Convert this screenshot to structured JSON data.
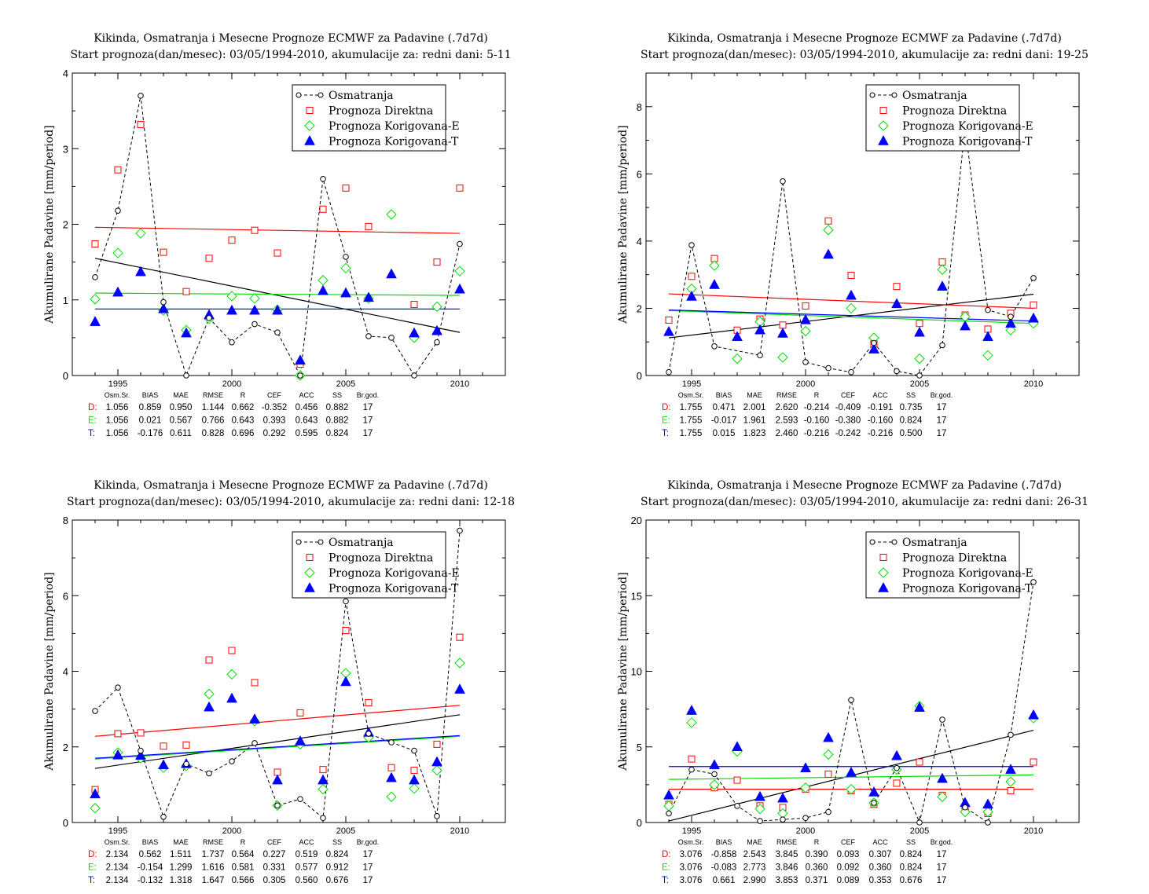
{
  "years": [
    1994,
    1995,
    1996,
    1997,
    1998,
    1999,
    2000,
    2001,
    2002,
    2003,
    2004,
    2005,
    2006,
    2007,
    2008,
    2009,
    2010
  ],
  "stat_header": [
    "Osm.Sr.",
    "BIAS",
    "MAE",
    "RMSE",
    "R",
    "CEF",
    "ACC",
    "SS",
    "Br.god."
  ],
  "legend_labels": [
    "Osmatranja",
    "Prognoza Direktna",
    "Prognoza Korigovana-E",
    "Prognoza Korigovana-T"
  ],
  "colors": {
    "obs": "#000000",
    "direct": "#ff0000",
    "corr_e": "#00dd00",
    "corr_t": "#0000ff"
  },
  "chart_data": [
    {
      "type": "scatter",
      "title": "Kikinda, Osmatranja i Mesecne Prognoze ECMWF za Padavine (.7d7d)",
      "subtitle": "Start prognoza(dan/mesec): 03/05/1994-2010, akumulacije za: redni dani: 5-11",
      "ylabel": "Akumulirane Padavine [mm/period]",
      "xlim": [
        1993,
        2012
      ],
      "ylim": [
        0,
        4
      ],
      "xticks": [
        1995,
        2000,
        2005,
        2010
      ],
      "yticks": [
        0,
        1,
        2,
        3,
        4
      ],
      "series": [
        {
          "name": "Osmatranja",
          "values": [
            1.3,
            2.18,
            3.7,
            0.97,
            0.0,
            0.76,
            0.44,
            0.68,
            0.57,
            0.0,
            2.6,
            1.57,
            0.52,
            0.5,
            0.0,
            0.44,
            1.74
          ]
        },
        {
          "name": "Prognoza Direktna",
          "values": [
            1.74,
            2.72,
            3.32,
            1.63,
            1.11,
            1.55,
            1.79,
            1.92,
            1.62,
            0.15,
            2.2,
            2.48,
            1.97,
            null,
            0.94,
            1.5,
            2.48
          ]
        },
        {
          "name": "Prognoza Korigovana-E",
          "values": [
            1.01,
            1.62,
            1.88,
            0.86,
            0.6,
            0.75,
            1.05,
            1.02,
            0.87,
            0.0,
            1.26,
            1.42,
            1.02,
            2.13,
            0.5,
            0.91,
            1.38
          ]
        },
        {
          "name": "Prognoza Korigovana-T",
          "values": [
            0.71,
            1.1,
            1.37,
            0.88,
            0.56,
            0.8,
            0.86,
            0.86,
            0.86,
            0.2,
            1.12,
            1.09,
            1.03,
            1.34,
            0.56,
            0.59,
            1.14
          ]
        }
      ],
      "trends": {
        "obs": [
          1.55,
          0.57
        ],
        "direct": [
          1.96,
          1.88
        ],
        "corr_e": [
          1.09,
          1.06
        ],
        "corr_t": [
          0.88,
          0.88
        ]
      },
      "stats": [
        {
          "label": "D:",
          "values": [
            "1.056",
            "0.859",
            "0.950",
            "1.144",
            "0.662",
            "-0.352",
            "0.456",
            "0.882",
            "17"
          ]
        },
        {
          "label": "E:",
          "values": [
            "1.056",
            "0.021",
            "0.567",
            "0.766",
            "0.643",
            "0.393",
            "0.643",
            "0.882",
            "17"
          ]
        },
        {
          "label": "T:",
          "values": [
            "1.056",
            "-0.176",
            "0.611",
            "0.828",
            "0.696",
            "0.292",
            "0.595",
            "0.824",
            "17"
          ]
        }
      ]
    },
    {
      "type": "scatter",
      "title": "Kikinda, Osmatranja i Mesecne Prognoze ECMWF za Padavine (.7d7d)",
      "subtitle": "Start prognoza(dan/mesec): 03/05/1994-2010, akumulacije za: redni dani: 19-25",
      "ylabel": "Akumulirane Padavine [mm/period]",
      "xlim": [
        1993,
        2012
      ],
      "ylim": [
        0,
        9
      ],
      "xticks": [
        1995,
        2000,
        2005,
        2010
      ],
      "yticks": [
        0,
        2,
        4,
        6,
        8
      ],
      "series": [
        {
          "name": "Osmatranja",
          "values": [
            0.1,
            3.88,
            0.87,
            null,
            0.6,
            5.78,
            0.4,
            0.22,
            0.1,
            0.97,
            0.13,
            0.0,
            0.9,
            7.4,
            1.95,
            1.75,
            2.9
          ]
        },
        {
          "name": "Prognoza Direktna",
          "values": [
            1.65,
            2.95,
            3.48,
            1.35,
            1.68,
            1.5,
            2.07,
            4.6,
            2.98,
            0.95,
            2.65,
            1.55,
            3.38,
            1.8,
            1.38,
            1.85,
            2.1
          ]
        },
        {
          "name": "Prognoza Korigovana-E",
          "values": [
            null,
            2.58,
            3.27,
            0.5,
            1.6,
            0.54,
            1.32,
            4.33,
            2.0,
            1.12,
            null,
            0.5,
            3.15,
            1.75,
            0.6,
            1.35,
            1.55
          ]
        },
        {
          "name": "Prognoza Korigovana-T",
          "values": [
            1.3,
            2.35,
            2.7,
            1.15,
            1.35,
            1.25,
            1.65,
            3.6,
            2.38,
            0.78,
            2.13,
            1.28,
            2.65,
            1.47,
            1.15,
            1.55,
            1.7
          ]
        }
      ],
      "trends": {
        "obs": [
          1.12,
          2.42
        ],
        "direct": [
          2.43,
          2.0
        ],
        "corr_e": [
          1.93,
          1.55
        ],
        "corr_t": [
          1.95,
          1.62
        ]
      },
      "stats": [
        {
          "label": "D:",
          "values": [
            "1.755",
            "0.471",
            "2.001",
            "2.620",
            "-0.214",
            "-0.409",
            "-0.191",
            "0.735",
            "17"
          ]
        },
        {
          "label": "E:",
          "values": [
            "1.755",
            "-0.017",
            "1.961",
            "2.593",
            "-0.160",
            "-0.380",
            "-0.160",
            "0.824",
            "17"
          ]
        },
        {
          "label": "T:",
          "values": [
            "1.755",
            "0.015",
            "1.823",
            "2.460",
            "-0.216",
            "-0.242",
            "-0.216",
            "0.500",
            "17"
          ]
        }
      ]
    },
    {
      "type": "scatter",
      "title": "Kikinda, Osmatranja i Mesecne Prognoze ECMWF za Padavine (.7d7d)",
      "subtitle": "Start prognoza(dan/mesec): 03/05/1994-2010, akumulacije za: redni dani: 12-18",
      "ylabel": "Akumulirane Padavine [mm/period]",
      "xlim": [
        1993,
        2012
      ],
      "ylim": [
        0,
        8
      ],
      "xticks": [
        1995,
        2000,
        2005,
        2010
      ],
      "yticks": [
        0,
        2,
        4,
        6,
        8
      ],
      "series": [
        {
          "name": "Osmatranja",
          "values": [
            2.95,
            3.57,
            1.9,
            0.15,
            1.55,
            1.3,
            1.62,
            2.1,
            0.45,
            0.62,
            0.12,
            5.85,
            2.35,
            2.12,
            1.9,
            0.17,
            7.72
          ]
        },
        {
          "name": "Prognoza Direktna",
          "values": [
            0.87,
            2.35,
            2.37,
            2.02,
            2.05,
            4.3,
            4.55,
            3.7,
            1.33,
            2.9,
            1.4,
            5.08,
            3.17,
            1.45,
            1.38,
            2.07,
            4.9
          ]
        },
        {
          "name": "Prognoza Korigovana-E",
          "values": [
            0.38,
            1.85,
            1.7,
            1.45,
            1.5,
            3.4,
            3.92,
            2.68,
            0.45,
            2.07,
            0.88,
            3.95,
            2.25,
            0.68,
            0.9,
            1.38,
            4.22
          ]
        },
        {
          "name": "Prognoza Korigovana-T",
          "values": [
            0.75,
            1.78,
            1.77,
            1.52,
            1.55,
            3.05,
            3.28,
            2.73,
            1.12,
            2.15,
            1.12,
            3.72,
            2.38,
            1.18,
            1.12,
            1.6,
            3.52
          ]
        }
      ],
      "trends": {
        "obs": [
          1.43,
          2.85
        ],
        "direct": [
          2.28,
          3.1
        ],
        "corr_e": [
          1.68,
          2.28
        ],
        "corr_t": [
          1.7,
          2.3
        ]
      },
      "stats": [
        {
          "label": "D:",
          "values": [
            "2.134",
            "0.562",
            "1.511",
            "1.737",
            "0.564",
            "0.227",
            "0.519",
            "0.824",
            "17"
          ]
        },
        {
          "label": "E:",
          "values": [
            "2.134",
            "-0.154",
            "1.299",
            "1.616",
            "0.581",
            "0.331",
            "0.577",
            "0.912",
            "17"
          ]
        },
        {
          "label": "T:",
          "values": [
            "2.134",
            "-0.132",
            "1.318",
            "1.647",
            "0.566",
            "0.305",
            "0.560",
            "0.676",
            "17"
          ]
        }
      ]
    },
    {
      "type": "scatter",
      "title": "Kikinda, Osmatranja i Mesecne Prognoze ECMWF za Padavine (.7d7d)",
      "subtitle": "Start prognoza(dan/mesec): 03/05/1994-2010, akumulacije za: redni dani: 26-31",
      "ylabel": "Akumulirane Padavine [mm/period]",
      "xlim": [
        1993,
        2012
      ],
      "ylim": [
        0,
        20
      ],
      "xticks": [
        1995,
        2000,
        2005,
        2010
      ],
      "yticks": [
        0,
        5,
        10,
        15,
        20
      ],
      "series": [
        {
          "name": "Osmatranja",
          "values": [
            0.6,
            3.5,
            3.2,
            1.1,
            0.1,
            0.2,
            0.3,
            0.7,
            8.1,
            1.3,
            3.6,
            0.0,
            6.8,
            1.0,
            0.0,
            5.8,
            15.9
          ]
        },
        {
          "name": "Prognoza Direktna",
          "values": [
            1.2,
            4.2,
            2.3,
            2.8,
            1.1,
            1.0,
            2.2,
            3.2,
            2.1,
            1.2,
            2.6,
            4.0,
            1.8,
            0.9,
            0.6,
            2.1,
            4.0
          ]
        },
        {
          "name": "Prognoza Korigovana-E",
          "values": [
            1.1,
            6.6,
            2.5,
            4.7,
            0.9,
            0.6,
            2.3,
            4.5,
            2.2,
            1.3,
            3.5,
            7.7,
            1.7,
            0.7,
            0.7,
            2.7,
            6.9
          ]
        },
        {
          "name": "Prognoza Korigovana-T",
          "values": [
            1.8,
            7.4,
            3.8,
            5.0,
            1.7,
            1.6,
            3.6,
            5.6,
            3.3,
            2.0,
            4.4,
            7.6,
            2.9,
            1.3,
            1.2,
            3.5,
            7.1
          ]
        }
      ],
      "trends": {
        "obs": [
          0.1,
          6.1
        ],
        "direct": [
          2.2,
          2.2
        ],
        "corr_e": [
          2.85,
          3.15
        ],
        "corr_t": [
          3.7,
          3.7
        ]
      },
      "stats": [
        {
          "label": "D:",
          "values": [
            "3.076",
            "-0.858",
            "2.543",
            "3.845",
            "0.390",
            "0.093",
            "0.307",
            "0.824",
            "17"
          ]
        },
        {
          "label": "E:",
          "values": [
            "3.076",
            "-0.083",
            "2.773",
            "3.846",
            "0.360",
            "0.092",
            "0.360",
            "0.824",
            "17"
          ]
        },
        {
          "label": "T:",
          "values": [
            "3.076",
            "0.661",
            "2.990",
            "3.853",
            "0.371",
            "0.089",
            "0.353",
            "0.676",
            "17"
          ]
        }
      ]
    }
  ]
}
